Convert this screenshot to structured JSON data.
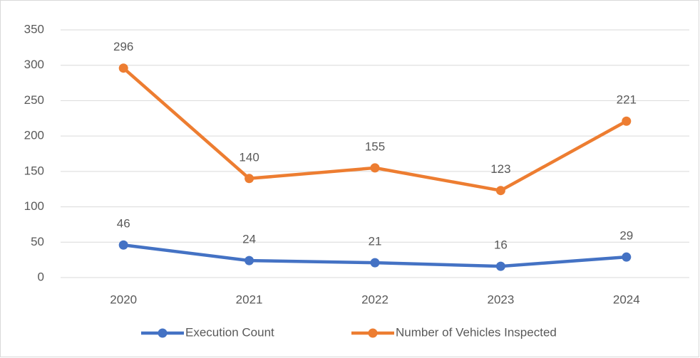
{
  "chart_data": {
    "type": "line",
    "categories": [
      "2020",
      "2021",
      "2022",
      "2023",
      "2024"
    ],
    "series": [
      {
        "name": "Execution Count",
        "color": "#4472c4",
        "values": [
          46,
          24,
          21,
          16,
          29
        ]
      },
      {
        "name": "Number of Vehicles Inspected",
        "color": "#ed7d31",
        "values": [
          296,
          140,
          155,
          123,
          221
        ]
      }
    ],
    "ylim": [
      0,
      350
    ],
    "yticks": [
      0,
      50,
      100,
      150,
      200,
      250,
      300,
      350
    ],
    "grid": true,
    "legend": "bottom"
  }
}
